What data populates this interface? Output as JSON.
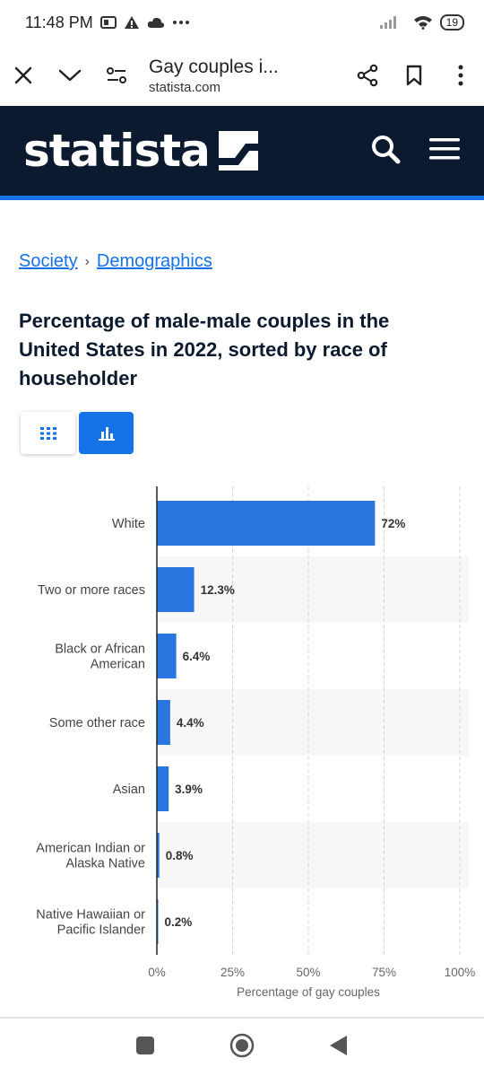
{
  "status_bar": {
    "time": "11:48 PM",
    "battery": "19"
  },
  "browser": {
    "tab_title": "Gay couples i...",
    "host": "statista.com"
  },
  "site": {
    "logo": "statista"
  },
  "breadcrumb": {
    "items": [
      "Society",
      "Demographics"
    ],
    "separator": "›"
  },
  "page_title": "Percentage of male-male couples in the United States in 2022, sorted by race of householder",
  "colors": {
    "accent": "#1572e8",
    "header_bg": "#0b1a2e",
    "bar": "#2a76e0"
  },
  "chart_data": {
    "type": "bar",
    "orientation": "horizontal",
    "categories": [
      [
        "White"
      ],
      [
        "Two or more races"
      ],
      [
        "Black or African",
        "American"
      ],
      [
        "Some other race"
      ],
      [
        "Asian"
      ],
      [
        "American Indian or",
        "Alaska Native"
      ],
      [
        "Native Hawaiian or",
        "Pacific Islander"
      ]
    ],
    "values": [
      72,
      12.3,
      6.4,
      4.4,
      3.9,
      0.8,
      0.2
    ],
    "value_labels": [
      "72%",
      "12.3%",
      "6.4%",
      "4.4%",
      "3.9%",
      "0.8%",
      "0.2%"
    ],
    "xlim": [
      0,
      100
    ],
    "xticks": [
      0,
      25,
      50,
      75,
      100
    ],
    "xtick_labels": [
      "0%",
      "25%",
      "50%",
      "75%",
      "100%"
    ],
    "xlabel": "Percentage of gay couples",
    "grid": true
  }
}
